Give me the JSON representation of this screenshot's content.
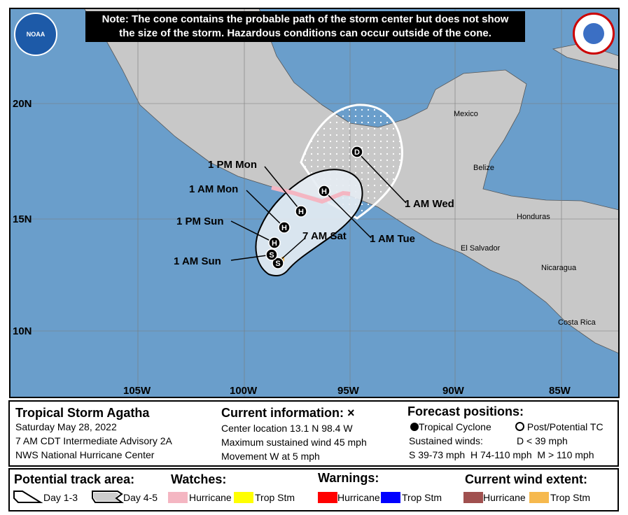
{
  "note": {
    "line1": "Note: The cone contains the probable path of the storm center but does not show",
    "line2": "the size of the storm. Hazardous conditions can occur outside of the cone."
  },
  "logos": {
    "left": "NOAA",
    "right": "NATIONAL WEATHER SERVICE"
  },
  "map": {
    "lat_labels": [
      "20N",
      "15N",
      "10N"
    ],
    "lon_labels": [
      "105W",
      "100W",
      "95W",
      "90W",
      "85W"
    ],
    "countries": [
      "Mexico",
      "Belize",
      "Honduras",
      "El Salvador",
      "Nicaragua",
      "Costa Rica"
    ],
    "track_labels": [
      "1 PM Mon",
      "1 AM Mon",
      "1 PM Sun",
      "1 AM Sun",
      "7 AM Sat",
      "1 AM Tue",
      "1 AM Wed"
    ],
    "points": [
      {
        "time": "7 AM Sat",
        "type": "S"
      },
      {
        "time": "1 AM Sun",
        "type": "S"
      },
      {
        "time": "1 PM Sun",
        "type": "H"
      },
      {
        "time": "1 AM Mon",
        "type": "H"
      },
      {
        "time": "1 PM Mon",
        "type": "H"
      },
      {
        "time": "1 AM Tue",
        "type": "H"
      },
      {
        "time": "1 AM Wed",
        "type": "D"
      }
    ],
    "colors": {
      "water": "#6a9ecb",
      "land": "#c8c8c8",
      "cone13": "#e6ecf3",
      "watch_hurricane": "#f4b6c2",
      "wind_trop_stm": "#f6b94e"
    }
  },
  "info": {
    "storm_name": "Tropical Storm Agatha",
    "date": "Saturday May 28, 2022",
    "advisory": "7 AM CDT Intermediate Advisory 2A",
    "center": "NWS National Hurricane Center",
    "current_title": "Current information: ×",
    "location": "Center location 13.1 N 98.4 W",
    "max_wind": "Maximum sustained wind 45 mph",
    "movement": "Movement W at 5 mph",
    "forecast_title": "Forecast positions:",
    "tc": "Tropical Cyclone",
    "ptc": "Post/Potential TC",
    "sustained": "Sustained winds:",
    "d": "D < 39 mph",
    "s": "S 39-73 mph",
    "hh": "H 74-110 mph",
    "m": "M > 110 mph"
  },
  "legend": {
    "track_title": "Potential track area:",
    "day13": "Day 1-3",
    "day45": "Day 4-5",
    "watches_title": "Watches:",
    "warnings_title": "Warnings:",
    "wind_title": "Current wind extent:",
    "hurricane": "Hurricane",
    "tropstm": "Trop Stm",
    "colors": {
      "watch_h": "#f4b6c2",
      "watch_t": "#ffff00",
      "warn_h": "#ff0000",
      "warn_t": "#0000ff",
      "wind_h": "#a0504f",
      "wind_t": "#f6b94e"
    }
  }
}
